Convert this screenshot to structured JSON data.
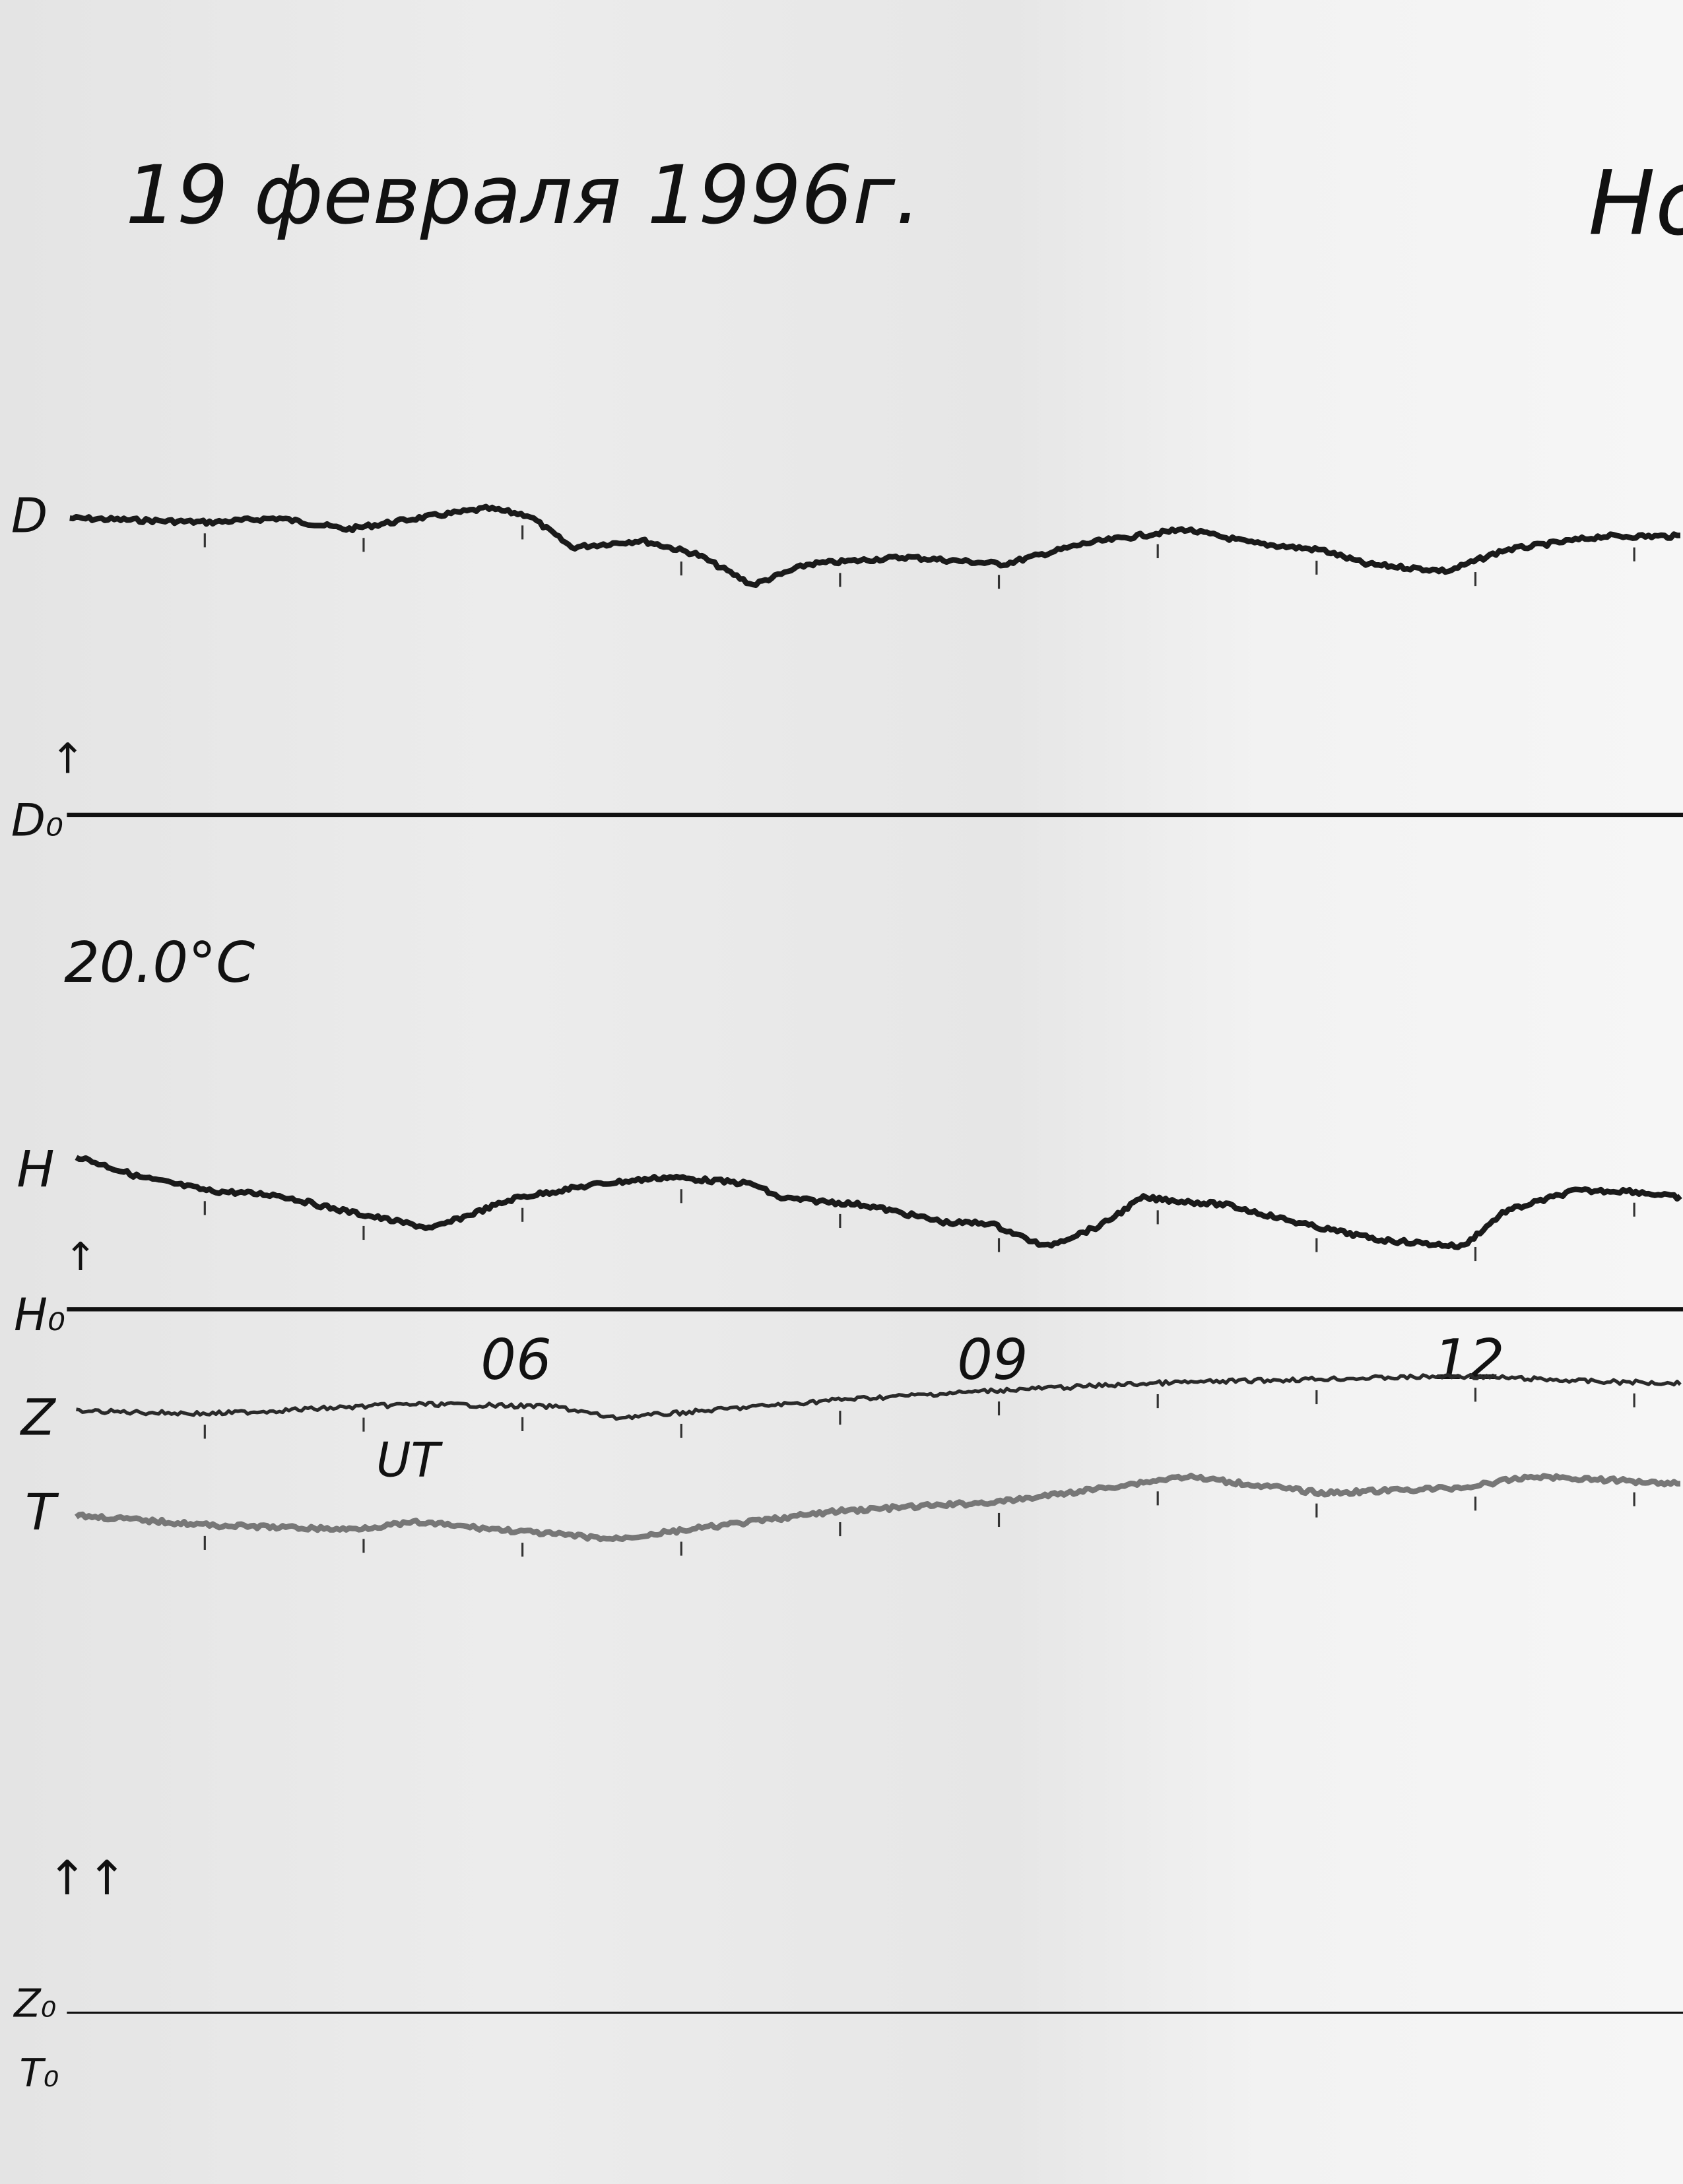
{
  "title": "19 февраля 1996г.",
  "title_right_partial": "Но",
  "temperature_label": "20.0°C",
  "chart_data": {
    "type": "line",
    "xlabel": "UT",
    "x_unit": "hours UT",
    "xlim": [
      3.15,
      13.3
    ],
    "x_tick_labels": [
      {
        "hour": 6,
        "label": "06"
      },
      {
        "hour": 9,
        "label": "09"
      },
      {
        "hour": 12,
        "label": "12"
      }
    ],
    "hour_marks": true,
    "grid": false,
    "baselines": [
      {
        "label": "D₀",
        "series": "D"
      },
      {
        "label": "H₀",
        "series": "H"
      },
      {
        "label": "Z₀",
        "series": "Z"
      },
      {
        "label": "T₀",
        "series": "T"
      }
    ],
    "series": [
      {
        "name": "D",
        "baseline": "D₀",
        "color": "#1a1a1a",
        "x": [
          3.15,
          4.03,
          4.46,
          4.9,
          5.34,
          5.78,
          6.04,
          6.31,
          6.75,
          7.1,
          7.45,
          7.8,
          8.41,
          9.03,
          9.55,
          10.17,
          10.6,
          11.04,
          11.31,
          11.83,
          12.18,
          12.8,
          13.3
        ],
        "y": [
          213,
          210,
          213,
          205,
          213,
          220,
          215,
          192,
          197,
          187,
          165,
          180,
          185,
          180,
          195,
          205,
          195,
          190,
          180,
          175,
          190,
          200,
          200
        ]
      },
      {
        "name": "H",
        "baseline": "H₀",
        "color": "#1a1a1a",
        "x": [
          3.19,
          3.59,
          4.03,
          4.46,
          4.82,
          5.43,
          5.96,
          6.48,
          6.92,
          7.45,
          7.62,
          8.15,
          8.68,
          8.94,
          9.29,
          9.64,
          9.9,
          10.43,
          10.96,
          11.39,
          11.92,
          12.18,
          12.62,
          12.97,
          13.3
        ],
        "y": [
          110,
          95,
          85,
          82,
          72,
          58,
          80,
          90,
          95,
          90,
          80,
          75,
          62,
          62,
          45,
          60,
          80,
          75,
          60,
          50,
          45,
          70,
          85,
          85,
          80
        ]
      },
      {
        "name": "Z",
        "baseline": "Z₀",
        "color": "#2a2a2a",
        "x": [
          3.19,
          4.03,
          5.34,
          6.22,
          6.57,
          6.92,
          7.98,
          9.03,
          9.99,
          11.04,
          11.92,
          12.8,
          13.3
        ],
        "y": [
          432,
          430,
          437,
          435,
          427,
          430,
          440,
          447,
          452,
          455,
          457,
          453,
          452
        ]
      },
      {
        "name": "T",
        "baseline": "T₀",
        "color": "#777777",
        "x": [
          3.19,
          4.03,
          4.9,
          5.34,
          6.04,
          6.57,
          6.92,
          7.98,
          9.03,
          9.55,
          10.17,
          11.04,
          11.92,
          12.36,
          13.3
        ],
        "y": [
          357,
          350,
          347,
          352,
          345,
          340,
          345,
          360,
          367,
          375,
          385,
          373,
          377,
          385,
          380
        ]
      }
    ]
  },
  "arrows": {
    "single": "↑",
    "double": "↑↑"
  }
}
